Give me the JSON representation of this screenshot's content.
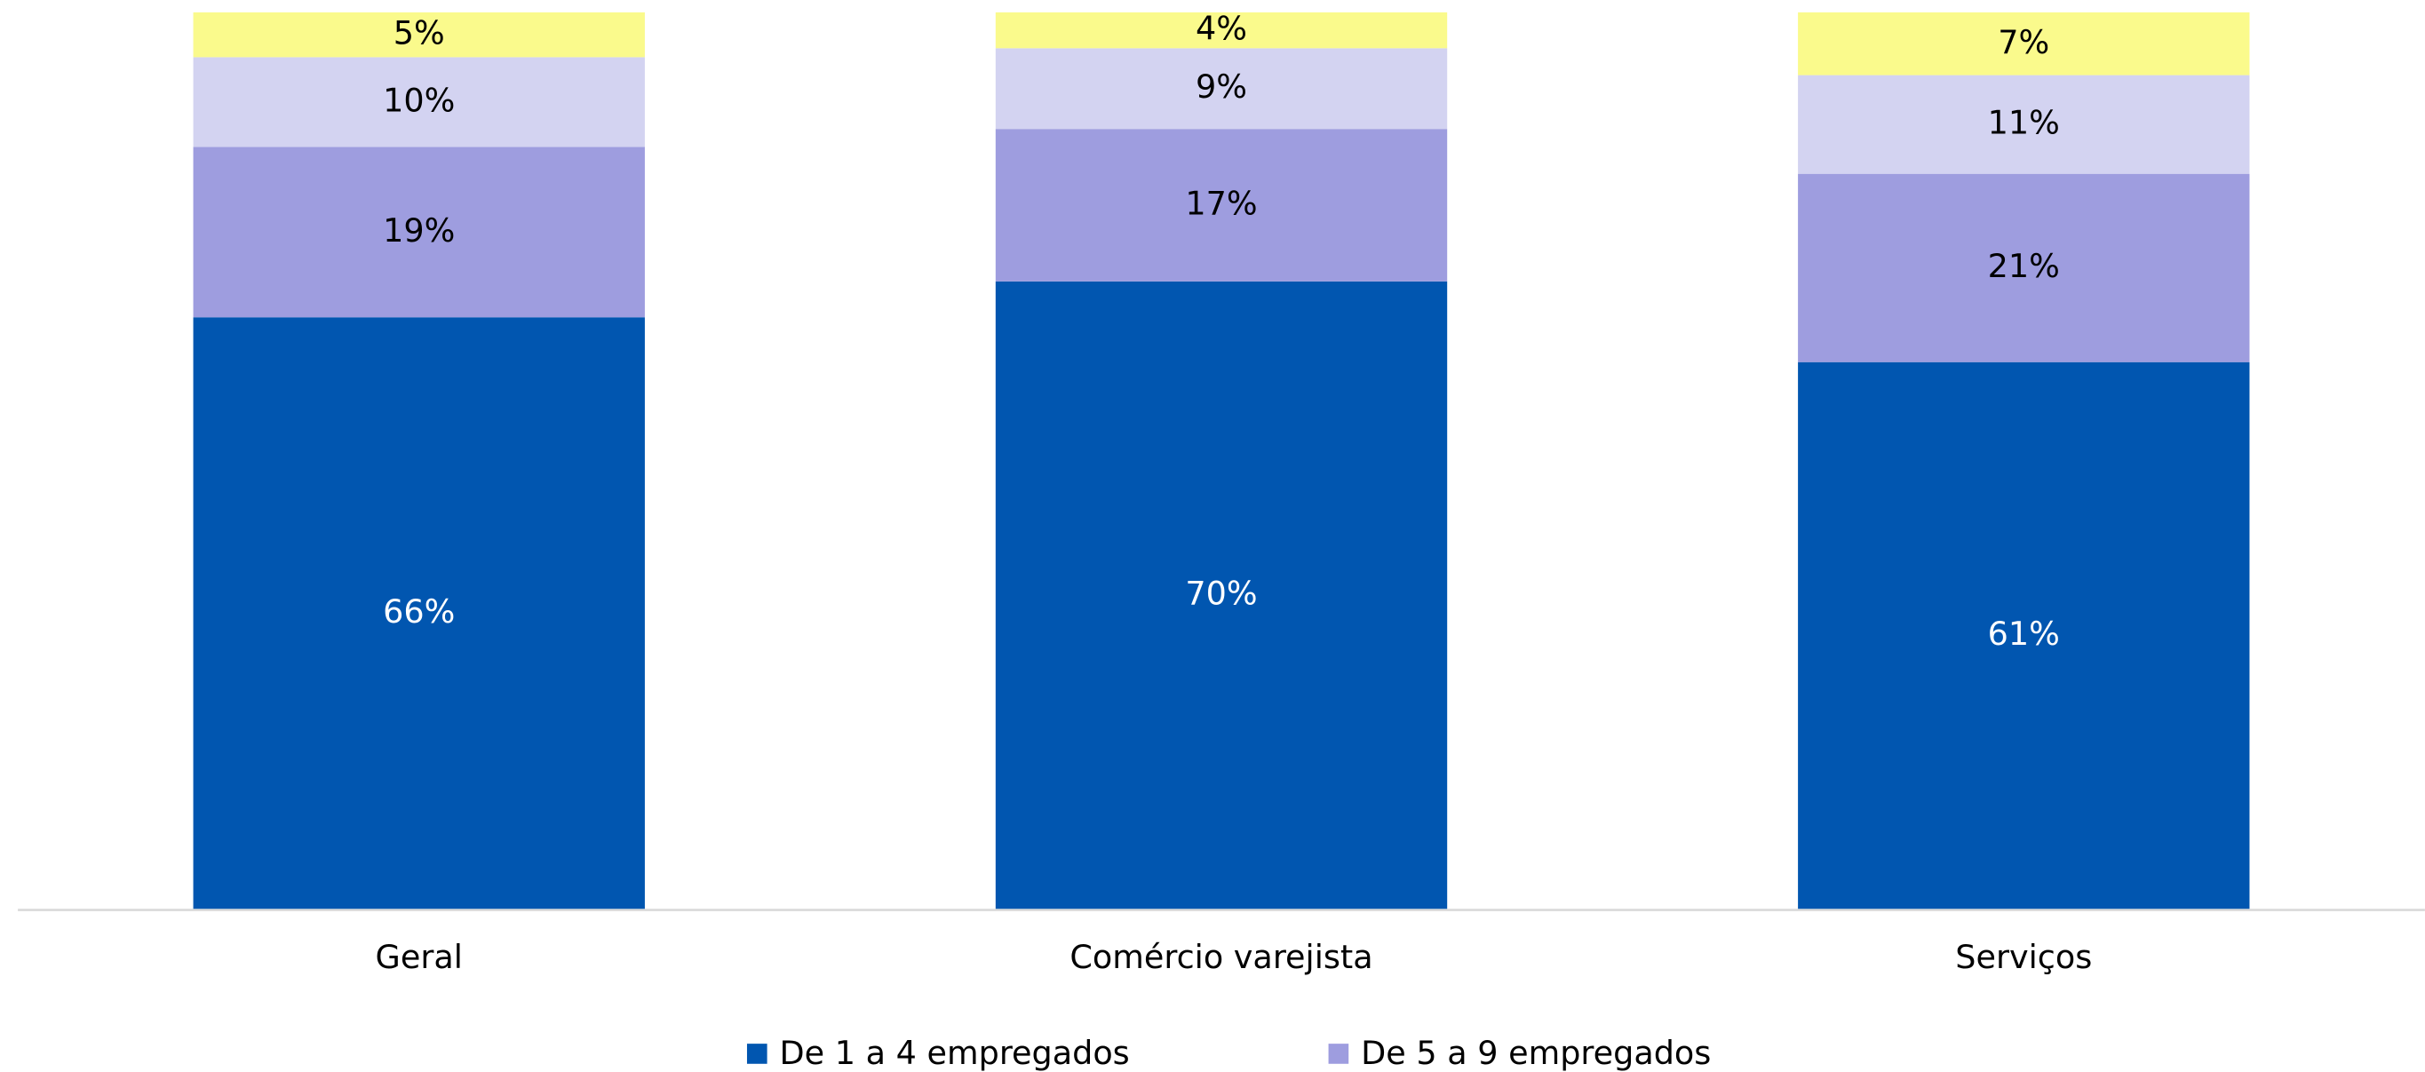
{
  "chart_data": {
    "type": "stacked_bar",
    "categories": [
      "Geral",
      "Comércio varejista",
      "Serviços"
    ],
    "ylim": [
      0,
      100
    ],
    "series": [
      {
        "name": "De 1 a 4 empregados",
        "color": "#0156b0",
        "label_color": "#ffffff",
        "values": [
          66,
          70,
          61
        ],
        "value_labels": [
          "66%",
          "70%",
          "61%"
        ]
      },
      {
        "name": "De 5 a 9 empregados",
        "color": "#9e9ddf",
        "label_color": "#000000",
        "values": [
          19,
          17,
          21
        ],
        "value_labels": [
          "19%",
          "17%",
          "21%"
        ]
      },
      {
        "color": "#d3d3f1",
        "label_color": "#000000",
        "values": [
          10,
          9,
          11
        ],
        "value_labels": [
          "10%",
          "9%",
          "11%"
        ]
      },
      {
        "color": "#fafa8c",
        "label_color": "#000000",
        "values": [
          5,
          4,
          7
        ],
        "value_labels": [
          "5%",
          "4%",
          "7%"
        ]
      }
    ]
  }
}
